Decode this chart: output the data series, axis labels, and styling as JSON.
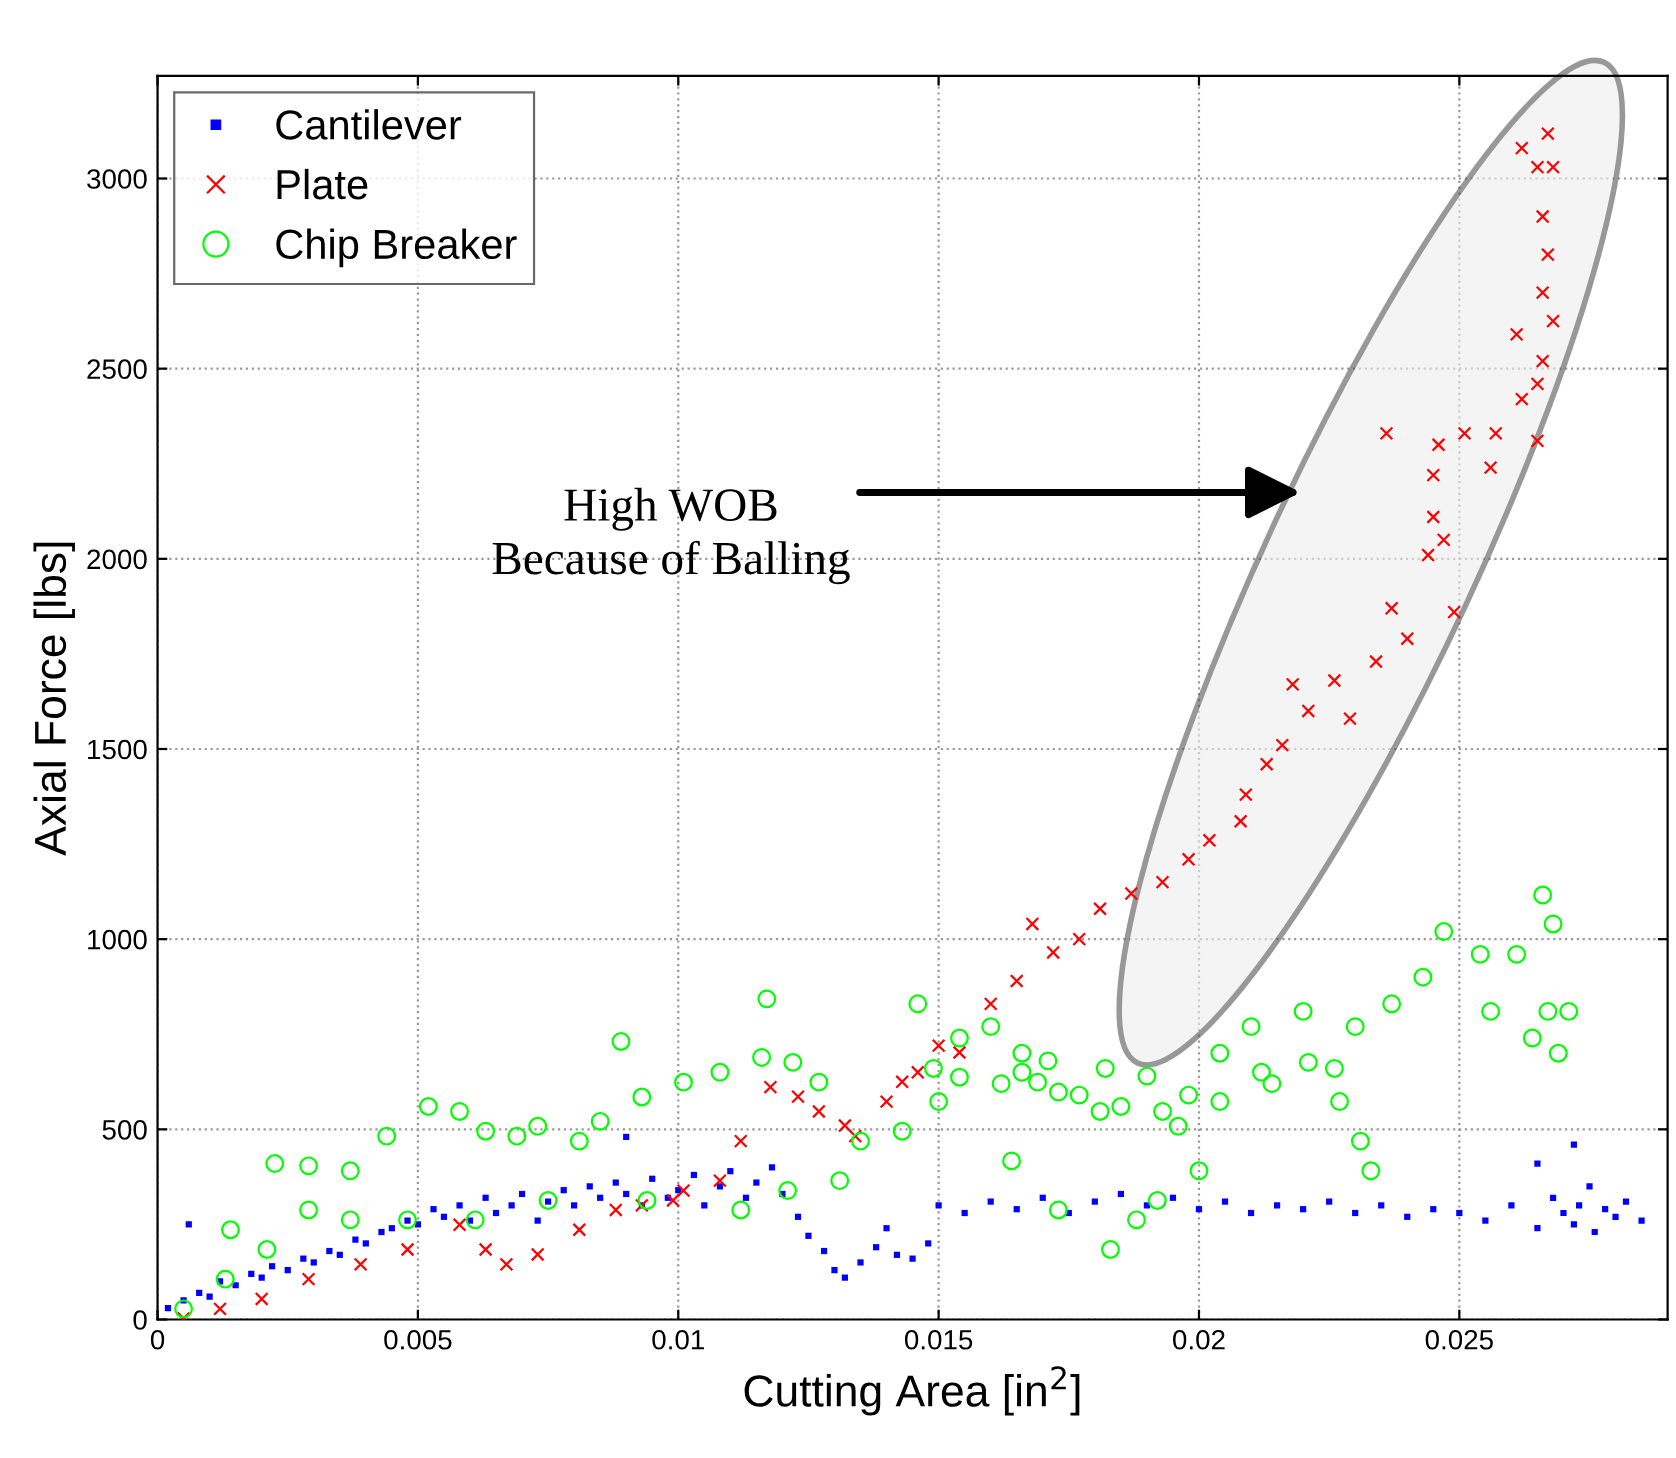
{
  "chart_data": {
    "type": "scatter",
    "xlabel": "Cutting Area [in$^{2}$]",
    "ylabel": "Axial Force [lbs]",
    "xlim": [
      0,
      0.029
    ],
    "ylim": [
      0,
      3270
    ],
    "xticks": [
      0,
      0.005,
      0.01,
      0.015,
      0.02,
      0.025
    ],
    "yticks": [
      0,
      500,
      1000,
      1500,
      2000,
      2500,
      3000
    ],
    "grid": true,
    "legend": "top left",
    "line_style": "dotted",
    "annotations": [
      "High WOB\nBecause of Balling"
    ],
    "series": [
      {
        "name": "Cantilever",
        "color": "#0000ff",
        "marker": "square",
        "x": [
          0.0002,
          0.0005,
          0.0008,
          0.001,
          0.0012,
          0.0015,
          0.0018,
          0.002,
          0.0022,
          0.0025,
          0.0028,
          0.003,
          0.0033,
          0.0035,
          0.0038,
          0.004,
          0.0043,
          0.0045,
          0.0048,
          0.005,
          0.0053,
          0.0055,
          0.0058,
          0.006,
          0.0063,
          0.0065,
          0.0068,
          0.007,
          0.0073,
          0.0075,
          0.0078,
          0.008,
          0.0083,
          0.0085,
          0.0088,
          0.009,
          0.0093,
          0.0095,
          0.0098,
          0.01,
          0.0103,
          0.0105,
          0.0108,
          0.011,
          0.0113,
          0.0115,
          0.0118,
          0.012,
          0.0123,
          0.0125,
          0.0128,
          0.013,
          0.0132,
          0.0135,
          0.0138,
          0.014,
          0.0142,
          0.0145,
          0.0148,
          0.015,
          0.0155,
          0.016,
          0.0165,
          0.017,
          0.0175,
          0.018,
          0.0185,
          0.019,
          0.0195,
          0.02,
          0.0205,
          0.021,
          0.0215,
          0.022,
          0.0225,
          0.023,
          0.0235,
          0.024,
          0.0245,
          0.025,
          0.0255,
          0.026,
          0.0265,
          0.0268,
          0.027,
          0.0272,
          0.0273,
          0.0275,
          0.0276,
          0.0278,
          0.028,
          0.0282,
          0.0285,
          0.0272,
          0.0265,
          0.0006,
          0.009
        ],
        "values": [
          30,
          50,
          70,
          60,
          100,
          90,
          120,
          110,
          140,
          130,
          160,
          150,
          180,
          170,
          210,
          200,
          230,
          240,
          260,
          250,
          290,
          270,
          300,
          260,
          320,
          280,
          300,
          330,
          260,
          310,
          340,
          300,
          350,
          320,
          360,
          330,
          300,
          370,
          320,
          340,
          380,
          300,
          350,
          390,
          320,
          360,
          400,
          330,
          270,
          220,
          180,
          130,
          110,
          150,
          190,
          240,
          170,
          160,
          200,
          300,
          280,
          310,
          290,
          320,
          280,
          310,
          330,
          300,
          320,
          290,
          310,
          280,
          300,
          290,
          310,
          280,
          300,
          270,
          290,
          280,
          260,
          300,
          240,
          320,
          280,
          250,
          300,
          350,
          230,
          290,
          270,
          310,
          260,
          460,
          410,
          250,
          480
        ]
      },
      {
        "name": "Plate",
        "color": "#ff0000",
        "marker": "cross",
        "x": [
          0.0005,
          0.0012,
          0.002,
          0.0029,
          0.0039,
          0.0048,
          0.0058,
          0.0063,
          0.0067,
          0.0073,
          0.0081,
          0.0088,
          0.0093,
          0.0099,
          0.0101,
          0.0108,
          0.0112,
          0.01177,
          0.0123,
          0.0127,
          0.0132,
          0.0134,
          0.014,
          0.0143,
          0.0146,
          0.015,
          0.0154,
          0.016,
          0.0165,
          0.0168,
          0.0172,
          0.0177,
          0.0181,
          0.0187,
          0.0193,
          0.0198,
          0.0202,
          0.0208,
          0.0209,
          0.0213,
          0.0216,
          0.0218,
          0.0221,
          0.0226,
          0.0229,
          0.0234,
          0.0236,
          0.0237,
          0.024,
          0.0244,
          0.0245,
          0.0245,
          0.0246,
          0.0247,
          0.0249,
          0.0251,
          0.0256,
          0.0257,
          0.0261,
          0.0262,
          0.0262,
          0.0265,
          0.0265,
          0.0265,
          0.0266,
          0.0266,
          0.0266,
          0.0267,
          0.0267,
          0.0268,
          0.0268
        ],
        "values": [
          3,
          28,
          54,
          106,
          145,
          184,
          249,
          184,
          145,
          171,
          236,
          288,
          300,
          313,
          339,
          365,
          469,
          611,
          586,
          547,
          510,
          482,
          573,
          625,
          650,
          720,
          702,
          830,
          890,
          1040,
          965,
          1000,
          1080,
          1120,
          1150,
          1210,
          1260,
          1310,
          1380,
          1460,
          1510,
          1670,
          1600,
          1680,
          1580,
          1730,
          2330,
          1870,
          1790,
          2010,
          2220,
          2110,
          2300,
          2050,
          1860,
          2330,
          2240,
          2330,
          2590,
          3080,
          2420,
          3030,
          2310,
          2460,
          2900,
          2700,
          2520,
          3118,
          2800,
          3030,
          2625
        ]
      },
      {
        "name": "Chip Breaker",
        "color": "#00ff00",
        "marker": "circle",
        "x": [
          0.0005,
          0.0013,
          0.0014,
          0.0021,
          0.00225,
          0.0029,
          0.0029,
          0.0037,
          0.0037,
          0.0044,
          0.0048,
          0.0052,
          0.0058,
          0.0061,
          0.0063,
          0.0069,
          0.0073,
          0.0075,
          0.0081,
          0.0085,
          0.0089,
          0.0093,
          0.0094,
          0.0101,
          0.0108,
          0.0112,
          0.0116,
          0.0117,
          0.0121,
          0.0122,
          0.0127,
          0.0131,
          0.0135,
          0.0143,
          0.0146,
          0.0149,
          0.015,
          0.0154,
          0.0154,
          0.016,
          0.0162,
          0.0164,
          0.0166,
          0.0166,
          0.0169,
          0.0171,
          0.0173,
          0.0173,
          0.0177,
          0.0181,
          0.0182,
          0.0183,
          0.0185,
          0.0188,
          0.019,
          0.0192,
          0.0193,
          0.0196,
          0.0198,
          0.02,
          0.0204,
          0.0204,
          0.021,
          0.0212,
          0.0214,
          0.022,
          0.0221,
          0.0226,
          0.0227,
          0.023,
          0.0231,
          0.0233,
          0.0237,
          0.0243,
          0.0247,
          0.0254,
          0.0256,
          0.0261,
          0.0264,
          0.0266,
          0.0267,
          0.0268,
          0.0269,
          0.0271
        ],
        "values": [
          28,
          106,
          236,
          184,
          410,
          288,
          404,
          391,
          262,
          482,
          262,
          560,
          547,
          262,
          495,
          482,
          508,
          313,
          469,
          521,
          731,
          585,
          313,
          624,
          650,
          288,
          689,
          843,
          339,
          676,
          624,
          365,
          469,
          495,
          830,
          660,
          573,
          637,
          740,
          770,
          620,
          417,
          650,
          700,
          624,
          680,
          598,
          288,
          590,
          547,
          660,
          184,
          560,
          262,
          640,
          313,
          547,
          508,
          590,
          391,
          573,
          700,
          770,
          650,
          620,
          810,
          676,
          660,
          573,
          770,
          469,
          391,
          830,
          900,
          1020,
          960,
          810,
          960,
          740,
          1116,
          810,
          1040,
          700,
          810
        ]
      }
    ]
  }
}
